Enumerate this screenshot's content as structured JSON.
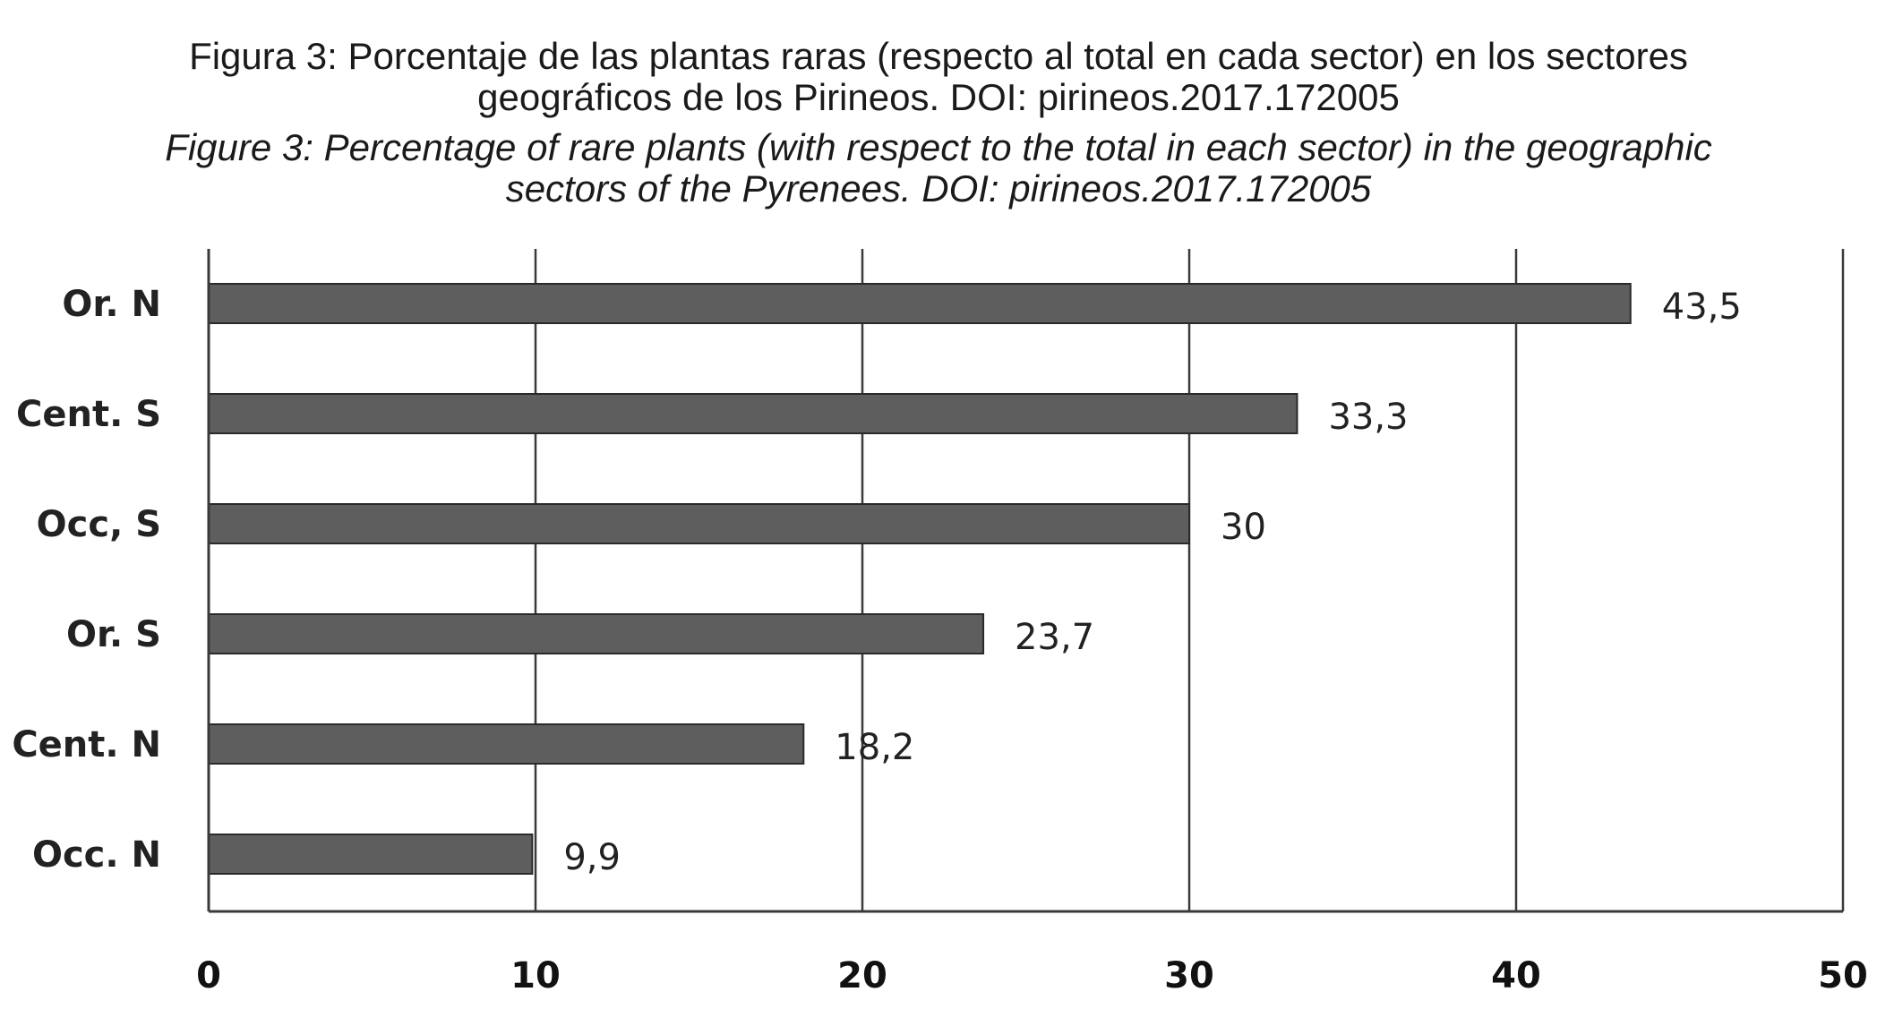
{
  "caption": {
    "es_line1": "Figura 3: Porcentaje de las plantas raras (respecto al total en cada sector) en los sectores",
    "es_line2": "geográficos de los Pirineos. DOI: pirineos.2017.172005",
    "en_line1": "Figure 3: Percentage of  rare plants (with respect to the total in each sector) in the geographic",
    "en_line2": "sectors of  the Pyrenees. DOI: pirineos.2017.172005"
  },
  "chart_data": {
    "type": "bar",
    "orientation": "horizontal",
    "categories": [
      "Or. N",
      "Cent. S",
      "Occ, S",
      "Or. S",
      "Cent. N",
      "Occ. N"
    ],
    "values": [
      43.5,
      33.3,
      30,
      23.7,
      18.2,
      9.9
    ],
    "value_labels": [
      "43,5",
      "33,3",
      "30",
      "23,7",
      "18,2",
      "9,9"
    ],
    "xlim": [
      0,
      50
    ],
    "x_ticks": [
      0,
      10,
      20,
      30,
      40,
      50
    ],
    "x_tick_labels": [
      "0",
      "10",
      "20",
      "30",
      "40",
      "50"
    ],
    "grid": true,
    "bar_color": "#5e5e5e"
  }
}
